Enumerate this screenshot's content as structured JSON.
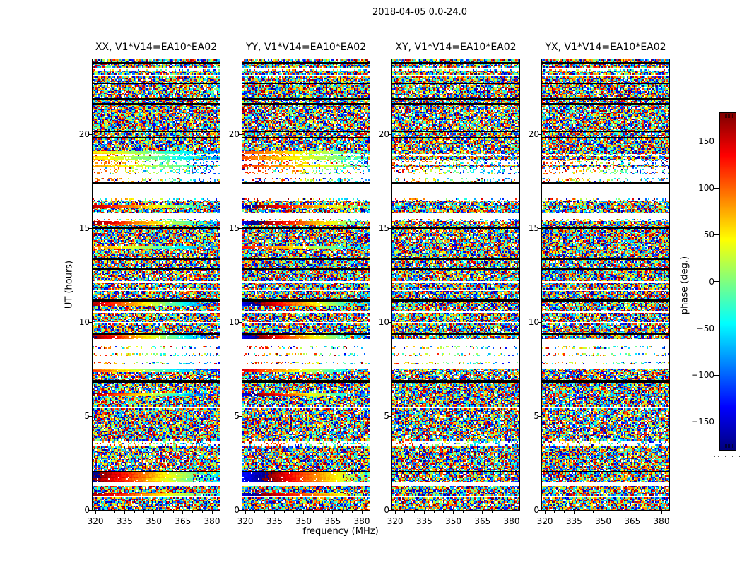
{
  "title": "2018-04-05 0.0-24.0",
  "panels": [
    {
      "label": "XX, V1*V14=EA10*EA02",
      "seed": 11,
      "cross_hand": false,
      "phase_offset": 0
    },
    {
      "label": "YY, V1*V14=EA10*EA02",
      "seed": 29,
      "cross_hand": false,
      "phase_offset": 40
    },
    {
      "label": "XY, V1*V14=EA10*EA02",
      "seed": 47,
      "cross_hand": true,
      "phase_offset": 0
    },
    {
      "label": "YX, V1*V14=EA10*EA02",
      "seed": 83,
      "cross_hand": true,
      "phase_offset": 0
    }
  ],
  "axes": {
    "xlabel": "frequency (MHz)",
    "ylabel": "UT (hours)",
    "x_ticks": [
      320,
      335,
      350,
      365,
      380
    ],
    "x_minor_ticks": [
      325,
      330,
      340,
      345,
      355,
      360,
      370,
      375
    ],
    "x_range": [
      318.5,
      384
    ],
    "y_ticks": [
      0,
      5,
      10,
      15,
      20
    ],
    "y_range": [
      0,
      24
    ]
  },
  "colorbar": {
    "label": "phase (deg.)",
    "ticks": [
      150,
      100,
      50,
      0,
      -50,
      -100,
      -150
    ],
    "range": [
      -180,
      180
    ],
    "colormap": "jet",
    "anchor_colors": [
      "#000080",
      "#0000ff",
      "#00ffff",
      "#80ff80",
      "#ffff00",
      "#ff8000",
      "#ff0000",
      "#800000"
    ]
  },
  "chart_data": {
    "type": "heatmap",
    "title": "2018-04-05 0.0-24.0",
    "xlabel": "frequency (MHz)",
    "ylabel": "UT (hours)",
    "value_label": "phase (deg.)",
    "value_range": [
      -180,
      180
    ],
    "x_range": [
      318.5,
      384
    ],
    "y_range": [
      0,
      24
    ],
    "x_ticks": [
      320,
      335,
      350,
      365,
      380
    ],
    "y_ticks": [
      0,
      5,
      10,
      15,
      20
    ],
    "colorbar_ticks": [
      150,
      100,
      50,
      0,
      -50,
      -100,
      -150
    ],
    "colormap": "jet",
    "panels": [
      "XX, V1*V14=EA10*EA02",
      "YY, V1*V14=EA10*EA02",
      "XY, V1*V14=EA10*EA02",
      "YX, V1*V14=EA10*EA02"
    ],
    "description": "Visibility phase vs frequency (318.5-384 MHz) and UT (0-24 h) for baseline V1*V14 = EA10*EA02 on 2018-04-05, four correlation products. Mostly random phase noise in scan blocks separated by thin flagged (black) rows and no-data (white) gaps; smooth phase-ramp bands (calibrator scans) appear in the parallel-hand panels XX and YY.",
    "band_types": {
      "n": "random phase noise",
      "k": "flagged row (black)",
      "w": "no data (white)",
      "s": "sparse dotted noise on white",
      "g": "smooth phase gradient across frequency (optional [start,end] phase in deg)"
    },
    "bands": [
      [
        24.0,
        23.85,
        "n"
      ],
      [
        23.85,
        23.78,
        "k"
      ],
      [
        23.78,
        23.55,
        "n"
      ],
      [
        23.55,
        23.48,
        "w"
      ],
      [
        23.48,
        23.4,
        "s"
      ],
      [
        23.4,
        23.17,
        "n"
      ],
      [
        23.17,
        23.1,
        "w"
      ],
      [
        23.1,
        22.76,
        "n"
      ],
      [
        22.76,
        22.68,
        "k"
      ],
      [
        22.68,
        21.93,
        "n"
      ],
      [
        21.93,
        21.86,
        "k"
      ],
      [
        21.86,
        21.67,
        "n"
      ],
      [
        21.67,
        21.59,
        "k"
      ],
      [
        21.59,
        20.2,
        "n"
      ],
      [
        20.2,
        20.12,
        "k"
      ],
      [
        20.12,
        19.86,
        "n"
      ],
      [
        19.86,
        19.79,
        "k"
      ],
      [
        19.79,
        19.11,
        "n"
      ],
      [
        19.11,
        18.96,
        "g",
        60,
        -80
      ],
      [
        18.96,
        18.85,
        "s"
      ],
      [
        18.85,
        18.66,
        "g",
        60,
        -80
      ],
      [
        18.66,
        18.4,
        "s"
      ],
      [
        18.4,
        18.25,
        "g",
        70,
        -60
      ],
      [
        18.25,
        17.87,
        "s"
      ],
      [
        17.87,
        17.68,
        "w"
      ],
      [
        17.68,
        17.49,
        "s"
      ],
      [
        17.49,
        17.38,
        "k"
      ],
      [
        17.38,
        16.59,
        "w"
      ],
      [
        16.59,
        16.48,
        "s"
      ],
      [
        16.48,
        16.25,
        "n"
      ],
      [
        16.25,
        16.1,
        "g",
        170,
        -60
      ],
      [
        16.1,
        15.8,
        "n"
      ],
      [
        15.8,
        15.5,
        "w"
      ],
      [
        15.5,
        15.39,
        "s"
      ],
      [
        15.39,
        15.2,
        "g",
        170,
        -80
      ],
      [
        15.2,
        15.05,
        "n"
      ],
      [
        15.05,
        14.97,
        "k"
      ],
      [
        14.97,
        14.07,
        "n"
      ],
      [
        14.07,
        13.92,
        "g",
        90,
        -110
      ],
      [
        13.92,
        13.39,
        "n"
      ],
      [
        13.39,
        13.32,
        "k"
      ],
      [
        13.32,
        12.86,
        "n"
      ],
      [
        12.86,
        12.79,
        "k"
      ],
      [
        12.79,
        12.19,
        "n"
      ],
      [
        12.19,
        12.11,
        "w"
      ],
      [
        12.11,
        11.74,
        "n"
      ],
      [
        11.74,
        11.66,
        "w"
      ],
      [
        11.66,
        11.25,
        "n"
      ],
      [
        11.25,
        11.1,
        "k"
      ],
      [
        11.1,
        10.87,
        "g",
        170,
        -120
      ],
      [
        10.87,
        10.61,
        "n"
      ],
      [
        10.61,
        10.49,
        "w"
      ],
      [
        10.49,
        10.01,
        "n"
      ],
      [
        10.01,
        9.93,
        "w"
      ],
      [
        9.93,
        9.4,
        "n"
      ],
      [
        9.4,
        9.33,
        "k"
      ],
      [
        9.33,
        9.1,
        "g",
        175,
        -130
      ],
      [
        9.1,
        8.73,
        "w"
      ],
      [
        8.73,
        8.58,
        "s"
      ],
      [
        8.58,
        8.35,
        "w"
      ],
      [
        8.35,
        8.2,
        "s"
      ],
      [
        8.2,
        7.9,
        "w"
      ],
      [
        7.9,
        7.75,
        "s"
      ],
      [
        7.75,
        7.52,
        "w"
      ],
      [
        7.52,
        7.33,
        "g",
        110,
        -130
      ],
      [
        7.33,
        6.92,
        "n"
      ],
      [
        6.92,
        6.77,
        "k"
      ],
      [
        6.77,
        6.24,
        "n"
      ],
      [
        6.24,
        6.09,
        "g",
        175,
        -140
      ],
      [
        6.09,
        5.49,
        "n"
      ],
      [
        5.49,
        5.42,
        "w"
      ],
      [
        5.42,
        3.65,
        "n"
      ],
      [
        3.65,
        3.39,
        "s"
      ],
      [
        3.39,
        2.07,
        "n"
      ],
      [
        2.07,
        1.99,
        "k"
      ],
      [
        1.99,
        1.5,
        "g",
        185,
        -60
      ],
      [
        1.5,
        1.28,
        "w"
      ],
      [
        1.28,
        0.9,
        "n"
      ],
      [
        0.9,
        0.75,
        "g",
        170,
        -40
      ],
      [
        0.75,
        0.68,
        "w"
      ],
      [
        0.68,
        0.0,
        "n"
      ]
    ]
  }
}
